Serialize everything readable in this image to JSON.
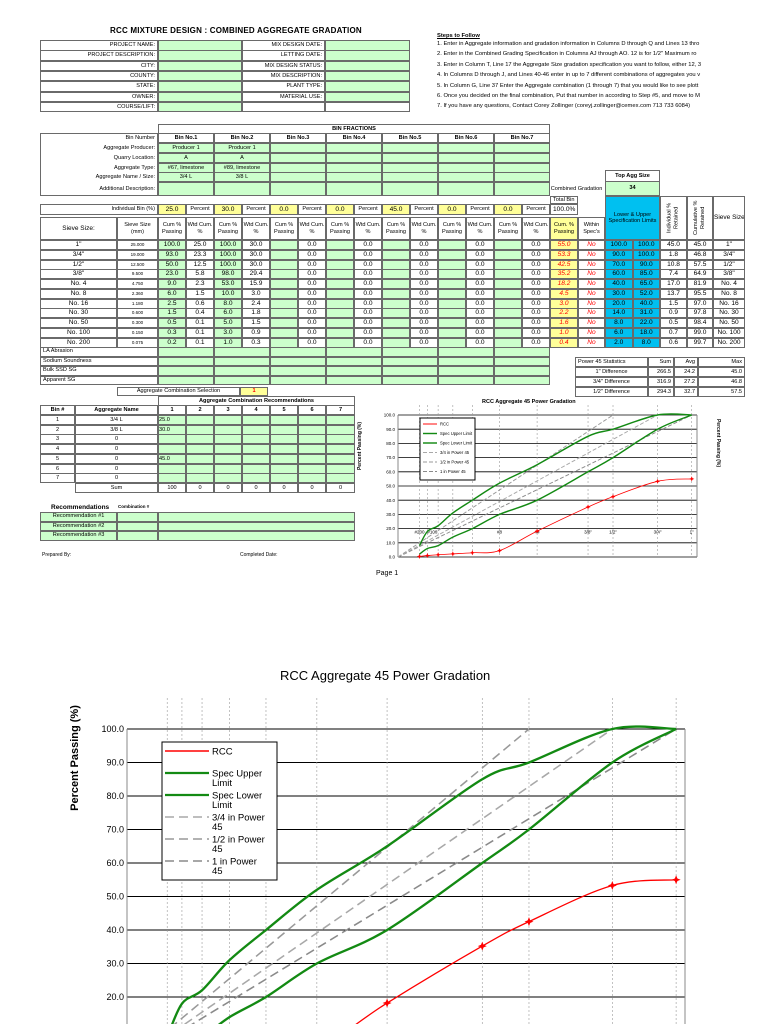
{
  "title": "RCC MIXTURE DESIGN : COMBINED AGGREGATE GRADATION",
  "project_info": {
    "left_labels": [
      "PROJECT NAME:",
      "PROJECT DESCRIPTION:",
      "CITY:",
      "COUNTY:",
      "STATE:",
      "OWNER:",
      "COURSE/LIFT:"
    ],
    "right_labels": [
      "MIX DESIGN DATE:",
      "LETTING DATE:",
      "MIX DESIGN STATUS:",
      "MIX DESCRIPTION:",
      "PLANT TYPE:",
      "MATERIAL USE:",
      ""
    ]
  },
  "steps": {
    "heading": "Steps to Follow",
    "items": [
      "1. Enter in Aggregate information and gradation information in Columns D through Q and Lines 13 thro",
      "2. Enter in the Combined Grading Specification in Columns AJ through AO.  12 is for 1/2\" Maximum ro",
      "3. Enter in Column T, Line 17 the Aggregate Size gradation specification you want to follow, either 12, 3",
      "4. In Columns D through J, and Lines 40-46 enter in up to 7 different combinations of aggregates you v",
      "5. In Column G, Line 37 Enter the Aggregate combination (1 through 7) that you would like to see plott",
      "6. Once you decided on the final combination, Put that number in according to Step #5, and move to M",
      "7. If you have any questions, Contact Corey Zollinger (coreyj.zollinger@cemex.com 713 733 6084)"
    ]
  },
  "bins": {
    "header": "BIN FRACTIONS",
    "row_labels": [
      "Bin Number",
      "Aggregate Producer:",
      "Quarry Location:",
      "Aggregate Type:",
      "Aggregate Name / Size:",
      "Additional Description:"
    ],
    "items": [
      {
        "number": "Bin No.1",
        "producer": "Producer 1",
        "quarry": "A",
        "type": "#67, limestone",
        "name": "3/4 L",
        "percent": "25.0"
      },
      {
        "number": "Bin No.2",
        "producer": "Producer 1",
        "quarry": "A",
        "type": "#89, limestone",
        "name": "3/8 L",
        "percent": "30.0"
      },
      {
        "number": "Bin No.3",
        "producer": "",
        "quarry": "",
        "type": "",
        "name": "",
        "percent": "0.0"
      },
      {
        "number": "Bin No.4",
        "producer": "",
        "quarry": "",
        "type": "",
        "name": "",
        "percent": "0.0"
      },
      {
        "number": "Bin No.5",
        "producer": "",
        "quarry": "",
        "type": "",
        "name": "",
        "percent": "45.0"
      },
      {
        "number": "Bin No.6",
        "producer": "",
        "quarry": "",
        "type": "",
        "name": "",
        "percent": "0.0"
      },
      {
        "number": "Bin No.7",
        "producer": "",
        "quarry": "",
        "type": "",
        "name": "",
        "percent": "0.0"
      }
    ],
    "individual_label": "Individual Bin (%)",
    "percent_label": "Percent",
    "combined_gradation_label": "Combined Gradation",
    "top_agg_label": "Top Agg Size",
    "top_agg_value": "34",
    "total_bin_label": "Total Bin",
    "total_bin_value": "100.0%"
  },
  "gradation": {
    "headers": {
      "sieve": "Sieve Size:",
      "sieve_mm": "Sieve Size (mm)",
      "cum": "Cum % Passing",
      "wtd": "Wtd Cum. %",
      "combined": "Cum. % Passing",
      "within": "Within Spec's",
      "limits": "Lower & Upper Specification Limits",
      "indiv": "Individual % Retained",
      "cumret": "Cumulative % Retained",
      "sieve_right": "Sieve Size"
    },
    "rows": [
      {
        "sieve": "1\"",
        "mm": "25.000",
        "cum": [
          "100.0",
          "100.0",
          "",
          "",
          "",
          "",
          ""
        ],
        "wtd": [
          "25.0",
          "30.0",
          "0.0",
          "0.0",
          "0.0",
          "0.0",
          "0.0"
        ],
        "combined": "55.0",
        "within": "No",
        "lower": "100.0",
        "upper": "100.0",
        "indiv": "45.0",
        "cumret": "45.0"
      },
      {
        "sieve": "3/4\"",
        "mm": "19.000",
        "cum": [
          "93.0",
          "100.0",
          "",
          "",
          "",
          "",
          ""
        ],
        "wtd": [
          "23.3",
          "30.0",
          "0.0",
          "0.0",
          "0.0",
          "0.0",
          "0.0"
        ],
        "combined": "53.3",
        "within": "No",
        "lower": "90.0",
        "upper": "100.0",
        "indiv": "1.8",
        "cumret": "46.8"
      },
      {
        "sieve": "1/2\"",
        "mm": "12.500",
        "cum": [
          "50.0",
          "100.0",
          "",
          "",
          "",
          "",
          ""
        ],
        "wtd": [
          "12.5",
          "30.0",
          "0.0",
          "0.0",
          "0.0",
          "0.0",
          "0.0"
        ],
        "combined": "42.5",
        "within": "No",
        "lower": "70.0",
        "upper": "90.0",
        "indiv": "10.8",
        "cumret": "57.5"
      },
      {
        "sieve": "3/8\"",
        "mm": "9.500",
        "cum": [
          "23.0",
          "98.0",
          "",
          "",
          "",
          "",
          ""
        ],
        "wtd": [
          "5.8",
          "29.4",
          "0.0",
          "0.0",
          "0.0",
          "0.0",
          "0.0"
        ],
        "combined": "35.2",
        "within": "No",
        "lower": "60.0",
        "upper": "85.0",
        "indiv": "7.4",
        "cumret": "64.9"
      },
      {
        "sieve": "No. 4",
        "mm": "4.750",
        "cum": [
          "9.0",
          "53.0",
          "",
          "",
          "",
          "",
          ""
        ],
        "wtd": [
          "2.3",
          "15.9",
          "0.0",
          "0.0",
          "0.0",
          "0.0",
          "0.0"
        ],
        "combined": "18.2",
        "within": "No",
        "lower": "40.0",
        "upper": "65.0",
        "indiv": "17.0",
        "cumret": "81.9"
      },
      {
        "sieve": "No. 8",
        "mm": "2.360",
        "cum": [
          "6.0",
          "10.0",
          "",
          "",
          "",
          "",
          ""
        ],
        "wtd": [
          "1.5",
          "3.0",
          "0.0",
          "0.0",
          "0.0",
          "0.0",
          "0.0"
        ],
        "combined": "4.5",
        "within": "No",
        "lower": "30.0",
        "upper": "52.0",
        "indiv": "13.7",
        "cumret": "95.5"
      },
      {
        "sieve": "No. 16",
        "mm": "1.180",
        "cum": [
          "2.5",
          "8.0",
          "",
          "",
          "",
          "",
          ""
        ],
        "wtd": [
          "0.6",
          "2.4",
          "0.0",
          "0.0",
          "0.0",
          "0.0",
          "0.0"
        ],
        "combined": "3.0",
        "within": "No",
        "lower": "20.0",
        "upper": "40.0",
        "indiv": "1.5",
        "cumret": "97.0"
      },
      {
        "sieve": "No. 30",
        "mm": "0.600",
        "cum": [
          "1.5",
          "6.0",
          "",
          "",
          "",
          "",
          ""
        ],
        "wtd": [
          "0.4",
          "1.8",
          "0.0",
          "0.0",
          "0.0",
          "0.0",
          "0.0"
        ],
        "combined": "2.2",
        "within": "No",
        "lower": "14.0",
        "upper": "31.0",
        "indiv": "0.9",
        "cumret": "97.8"
      },
      {
        "sieve": "No. 50",
        "mm": "0.300",
        "cum": [
          "0.5",
          "5.0",
          "",
          "",
          "",
          "",
          ""
        ],
        "wtd": [
          "0.1",
          "1.5",
          "0.0",
          "0.0",
          "0.0",
          "0.0",
          "0.0"
        ],
        "combined": "1.6",
        "within": "No",
        "lower": "8.0",
        "upper": "22.0",
        "indiv": "0.5",
        "cumret": "98.4"
      },
      {
        "sieve": "No. 100",
        "mm": "0.150",
        "cum": [
          "0.3",
          "3.0",
          "",
          "",
          "",
          "",
          ""
        ],
        "wtd": [
          "0.1",
          "0.9",
          "0.0",
          "0.0",
          "0.0",
          "0.0",
          "0.0"
        ],
        "combined": "1.0",
        "within": "No",
        "lower": "6.0",
        "upper": "18.0",
        "indiv": "0.7",
        "cumret": "99.0"
      },
      {
        "sieve": "No. 200",
        "mm": "0.075",
        "cum": [
          "0.2",
          "1.0",
          "",
          "",
          "",
          "",
          ""
        ],
        "wtd": [
          "0.1",
          "0.3",
          "0.0",
          "0.0",
          "0.0",
          "0.0",
          "0.0"
        ],
        "combined": "0.4",
        "within": "No",
        "lower": "2.0",
        "upper": "8.0",
        "indiv": "0.6",
        "cumret": "99.7"
      }
    ],
    "property_rows": [
      "LA Abrasion",
      "Sodium Soundness",
      "Bulk SSD SG",
      "Apparent SG"
    ]
  },
  "power45_stats": {
    "headers": [
      "Power 45 Statistics",
      "Sum",
      "Avg",
      "Max"
    ],
    "rows": [
      [
        "1\" Difference",
        "266.5",
        "24.2",
        "45.0"
      ],
      [
        "3/4\" Difference",
        "316.9",
        "27.2",
        "46.8"
      ],
      [
        "1/2\" Difference",
        "294.3",
        "32.7",
        "57.5"
      ]
    ]
  },
  "combination": {
    "selection_label": "Aggregate Combination Selection",
    "selection_value": "1",
    "header": "Aggregate Combination Recommendations",
    "columns": [
      "Bin #",
      "Aggregate Name",
      "1",
      "2",
      "3",
      "4",
      "5",
      "6",
      "7"
    ],
    "rows": [
      [
        "1",
        "3/4 L",
        "25.0",
        "",
        "",
        "",
        "",
        "",
        ""
      ],
      [
        "2",
        "3/8 L",
        "30.0",
        "",
        "",
        "",
        "",
        "",
        ""
      ],
      [
        "3",
        "0",
        "",
        "",
        "",
        "",
        "",
        "",
        ""
      ],
      [
        "4",
        "0",
        "",
        "",
        "",
        "",
        "",
        "",
        ""
      ],
      [
        "5",
        "0",
        "45.0",
        "",
        "",
        "",
        "",
        "",
        ""
      ],
      [
        "6",
        "0",
        "",
        "",
        "",
        "",
        "",
        "",
        ""
      ],
      [
        "7",
        "0",
        "",
        "",
        "",
        "",
        "",
        "",
        ""
      ]
    ],
    "sum_row": [
      "Sum",
      "100",
      "0",
      "0",
      "0",
      "0",
      "0",
      "0"
    ]
  },
  "recommendations": {
    "label": "Recommendations",
    "combination_label": "Combination #",
    "rows": [
      "Recommendation #1",
      "Recommendation #2",
      "Recommendation #3"
    ]
  },
  "footer": {
    "prepared_by": "Prepared By:",
    "completed_date": "Completed Date:",
    "page": "Page 1"
  },
  "colors": {
    "input_green": "#ccffcc",
    "highlight_yellow": "#ffff99",
    "spec_blue": "#00c0f0",
    "rcc_red": "#ff0000",
    "spec_green": "#138a13",
    "power_gray": "#999999"
  },
  "chart_data": {
    "type": "line",
    "title": "RCC Aggregate 45 Power Gradation",
    "ylabel": "Percent Passing (%)",
    "xscale": "sieve size (mm) raised to 0.45 power",
    "ylim": [
      0,
      100
    ],
    "ytick_step": 10,
    "grid": true,
    "legend": "top-left",
    "x_tick_labels": [
      {
        "label": "#200",
        "mm": 0.075
      },
      {
        "label": "#100",
        "mm": 0.15
      },
      {
        "label": "#8",
        "mm": 2.36
      },
      {
        "label": "#4",
        "mm": 4.75
      },
      {
        "label": "3/8\"",
        "mm": 9.5
      },
      {
        "label": "1/2\"",
        "mm": 12.5
      },
      {
        "label": "3/4\"",
        "mm": 19.0
      },
      {
        "label": "1\"",
        "mm": 25.0
      }
    ],
    "sieves_mm": [
      25.0,
      19.0,
      12.5,
      9.5,
      4.75,
      2.36,
      1.18,
      0.6,
      0.3,
      0.15,
      0.075
    ],
    "series": [
      {
        "name": "RCC",
        "color": "#ff0000",
        "style": "solid-marker",
        "x": [
          25.0,
          19.0,
          12.5,
          9.5,
          4.75,
          2.36,
          1.18,
          0.6,
          0.3,
          0.15,
          0.075
        ],
        "y": [
          55.0,
          53.3,
          42.5,
          35.2,
          18.2,
          4.5,
          3.0,
          2.2,
          1.6,
          1.0,
          0.4
        ]
      },
      {
        "name": "Spec Upper Limit",
        "color": "#138a13",
        "style": "solid-thick",
        "x": [
          25.0,
          19.0,
          12.5,
          9.5,
          4.75,
          2.36,
          1.18,
          0.6,
          0.3,
          0.15,
          0.075
        ],
        "y": [
          100,
          100,
          90,
          85,
          65,
          52,
          40,
          31,
          22,
          18,
          8
        ]
      },
      {
        "name": "Spec Lower Limit",
        "color": "#138a13",
        "style": "solid-thick",
        "x": [
          25.0,
          19.0,
          12.5,
          9.5,
          4.75,
          2.36,
          1.18,
          0.6,
          0.3,
          0.15,
          0.075
        ],
        "y": [
          100,
          90,
          70,
          60,
          40,
          30,
          20,
          14,
          8,
          6,
          2
        ]
      },
      {
        "name": "3/4 in Power 45",
        "color": "#a8a8a8",
        "style": "dashed",
        "x": [
          0,
          19.0
        ],
        "y": [
          0,
          100
        ]
      },
      {
        "name": "1/2 in Power 45",
        "color": "#999999",
        "style": "dashed",
        "x": [
          0,
          12.5
        ],
        "y": [
          0,
          100
        ]
      },
      {
        "name": "1 in Power 45",
        "color": "#8a8a8a",
        "style": "dashed",
        "x": [
          0,
          25.0
        ],
        "y": [
          0,
          100
        ]
      }
    ]
  }
}
